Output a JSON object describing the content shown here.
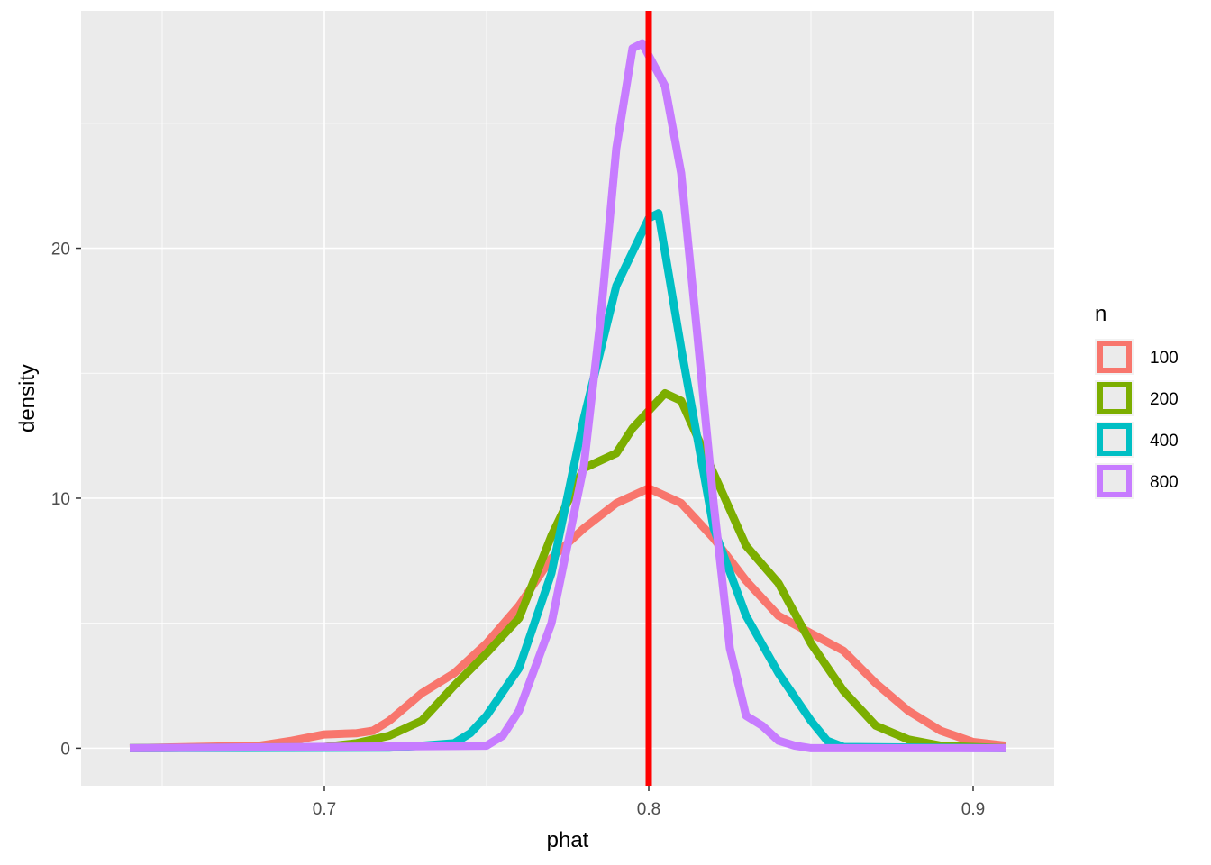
{
  "chart_data": {
    "type": "line",
    "title": "",
    "xlabel": "phat",
    "ylabel": "density",
    "xlim": [
      0.625,
      0.925
    ],
    "ylim": [
      -1.5,
      29.5
    ],
    "x_ticks": [
      {
        "value": 0.7,
        "label": "0.7"
      },
      {
        "value": 0.8,
        "label": "0.8"
      },
      {
        "value": 0.9,
        "label": "0.9"
      }
    ],
    "y_ticks": [
      {
        "value": 0,
        "label": "0"
      },
      {
        "value": 10,
        "label": "10"
      },
      {
        "value": 20,
        "label": "20"
      }
    ],
    "grid": true,
    "legend": {
      "title": "n",
      "position": "right"
    },
    "reference_line": {
      "x": 0.8,
      "color": "#FF0000"
    },
    "series": [
      {
        "name": "100",
        "color": "#F8766D",
        "x": [
          0.64,
          0.66,
          0.68,
          0.69,
          0.7,
          0.71,
          0.715,
          0.72,
          0.73,
          0.74,
          0.75,
          0.76,
          0.77,
          0.78,
          0.79,
          0.8,
          0.81,
          0.82,
          0.83,
          0.84,
          0.85,
          0.86,
          0.87,
          0.88,
          0.89,
          0.9,
          0.91
        ],
        "y": [
          0,
          0.05,
          0.1,
          0.3,
          0.55,
          0.6,
          0.7,
          1.1,
          2.2,
          3.0,
          4.2,
          5.7,
          7.6,
          8.8,
          9.8,
          10.4,
          9.8,
          8.4,
          6.7,
          5.3,
          4.6,
          3.9,
          2.6,
          1.5,
          0.7,
          0.25,
          0.1
        ]
      },
      {
        "name": "200",
        "color": "#7CAE00",
        "x": [
          0.64,
          0.7,
          0.71,
          0.72,
          0.73,
          0.74,
          0.75,
          0.76,
          0.77,
          0.78,
          0.79,
          0.795,
          0.8,
          0.805,
          0.81,
          0.82,
          0.83,
          0.84,
          0.85,
          0.86,
          0.87,
          0.88,
          0.89,
          0.91
        ],
        "y": [
          0,
          0.05,
          0.2,
          0.5,
          1.1,
          2.5,
          3.8,
          5.2,
          8.5,
          11.2,
          11.8,
          12.8,
          13.5,
          14.2,
          13.9,
          11.0,
          8.1,
          6.6,
          4.2,
          2.3,
          0.9,
          0.35,
          0.1,
          0
        ]
      },
      {
        "name": "400",
        "color": "#00BFC4",
        "x": [
          0.64,
          0.72,
          0.73,
          0.74,
          0.745,
          0.75,
          0.76,
          0.77,
          0.78,
          0.79,
          0.8,
          0.803,
          0.81,
          0.82,
          0.83,
          0.84,
          0.85,
          0.855,
          0.86,
          0.91
        ],
        "y": [
          0,
          0.02,
          0.1,
          0.2,
          0.6,
          1.3,
          3.2,
          7.0,
          13.2,
          18.5,
          21.2,
          21.4,
          16.0,
          8.8,
          5.3,
          3.0,
          1.1,
          0.3,
          0.05,
          0
        ]
      },
      {
        "name": "800",
        "color": "#C77CFF",
        "x": [
          0.64,
          0.75,
          0.755,
          0.76,
          0.77,
          0.78,
          0.785,
          0.79,
          0.795,
          0.798,
          0.805,
          0.81,
          0.815,
          0.82,
          0.825,
          0.83,
          0.835,
          0.84,
          0.845,
          0.85,
          0.91
        ],
        "y": [
          0,
          0.1,
          0.5,
          1.5,
          5.0,
          11.3,
          17.0,
          24.0,
          28.0,
          28.2,
          26.5,
          23.0,
          16.5,
          9.8,
          4.0,
          1.3,
          0.9,
          0.3,
          0.1,
          0,
          0
        ]
      }
    ]
  }
}
